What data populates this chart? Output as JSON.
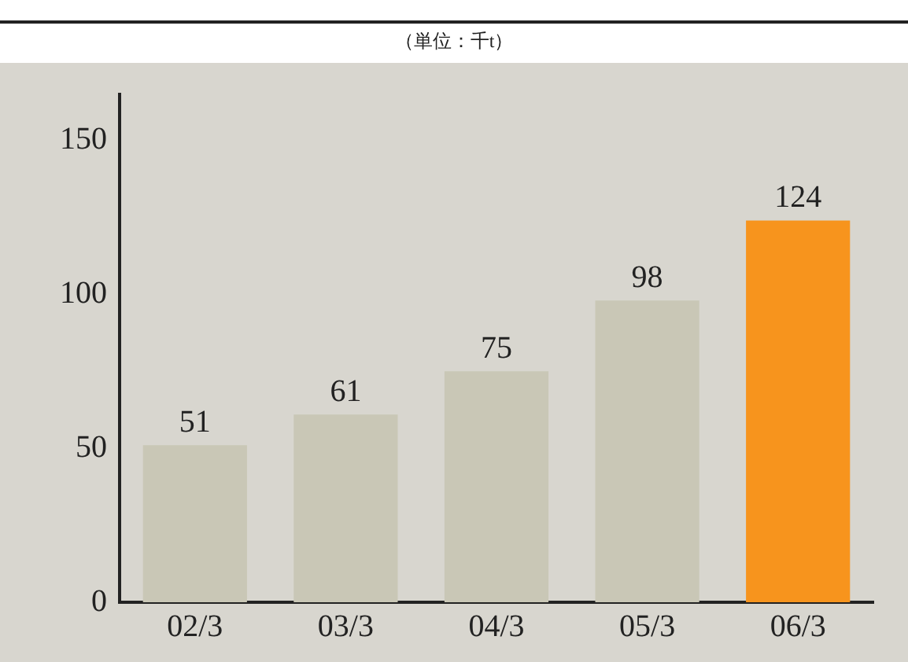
{
  "chart_data": {
    "type": "bar",
    "subtitle": "（単位：千t）",
    "categories": [
      "02/3",
      "03/3",
      "04/3",
      "05/3",
      "06/3"
    ],
    "values": [
      51,
      61,
      75,
      98,
      124
    ],
    "colors": [
      "#c9c7b6",
      "#c9c7b6",
      "#c9c7b6",
      "#c9c7b6",
      "#f7941d"
    ],
    "ylim": [
      0,
      165
    ],
    "yticks": [
      0,
      50,
      100,
      150
    ],
    "grid": false,
    "legend": false,
    "data_labels": true
  }
}
